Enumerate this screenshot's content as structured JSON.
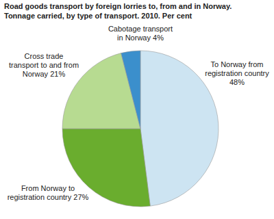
{
  "chart_data": {
    "type": "pie",
    "title": "Road goods transport by foreign lorries to, from and in Norway. Tonnage carried, by type of transport. 2010. Per cent",
    "categories": [
      "To Norway from registration country",
      "From Norway to registration country",
      "Cross trade transport to and from Norway",
      "Cabotage transport in Norway"
    ],
    "values": [
      48,
      27,
      21,
      4
    ],
    "value_labels": [
      "48%",
      "27%",
      "21%",
      "4%"
    ],
    "colors": [
      "#cde4f2",
      "#6aad2e",
      "#b7db91",
      "#3b8fcc"
    ],
    "data_labels": true
  }
}
